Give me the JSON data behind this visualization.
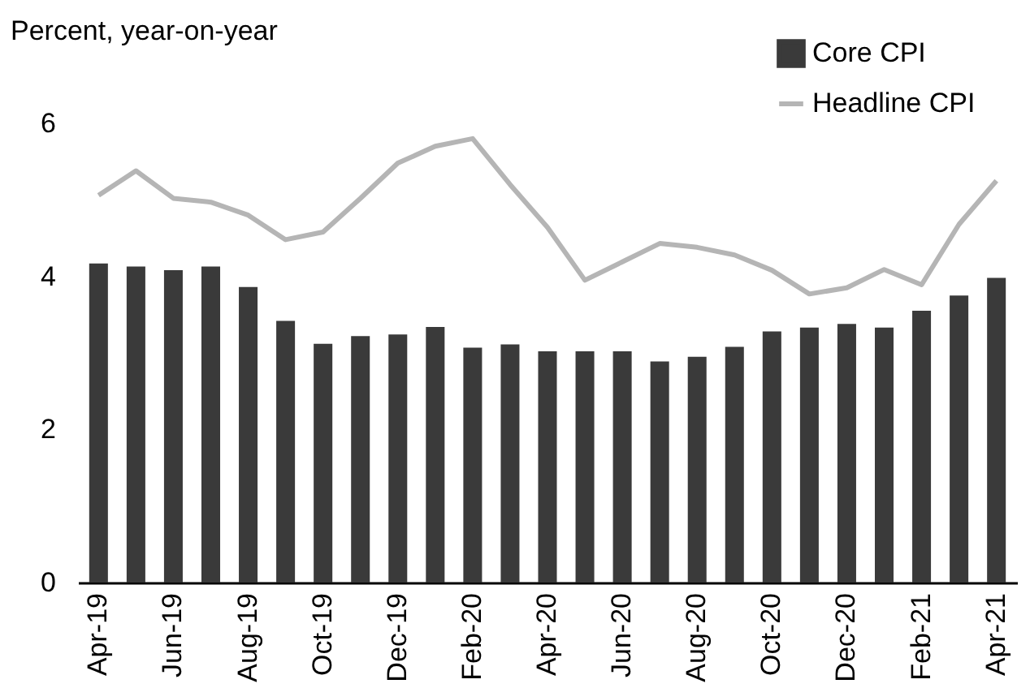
{
  "chart_data": {
    "type": "bar",
    "ylabel": "Percent, year-on-year",
    "categories": [
      "Apr-19",
      null,
      "Jun-19",
      null,
      "Aug-19",
      null,
      "Oct-19",
      null,
      "Dec-19",
      null,
      "Feb-20",
      null,
      "Apr-20",
      null,
      "Jun-20",
      null,
      "Aug-20",
      null,
      "Oct-20",
      null,
      "Dec-20",
      null,
      "Feb-21",
      null,
      "Apr-21"
    ],
    "series": [
      {
        "name": "Core CPI",
        "color": "#3a3a3a",
        "values": [
          4.17,
          4.13,
          4.08,
          4.13,
          3.86,
          3.42,
          3.12,
          3.22,
          3.24,
          3.34,
          3.07,
          3.11,
          3.02,
          3.02,
          3.02,
          2.89,
          2.95,
          3.08,
          3.28,
          3.33,
          3.38,
          3.33,
          3.55,
          3.75,
          3.98
        ]
      },
      {
        "name": "Headline CPI",
        "type": "line",
        "color": "#b5b5b5",
        "values": [
          5.06,
          5.38,
          5.02,
          4.97,
          4.8,
          4.48,
          4.58,
          5.02,
          5.48,
          5.7,
          5.8,
          5.2,
          4.64,
          3.95,
          4.19,
          4.43,
          4.38,
          4.28,
          4.08,
          3.77,
          3.85,
          4.09,
          3.89,
          4.68,
          5.25
        ]
      }
    ],
    "ylim": [
      0,
      6
    ],
    "yticks": [
      0,
      2,
      4,
      6
    ],
    "legend": "top right"
  }
}
